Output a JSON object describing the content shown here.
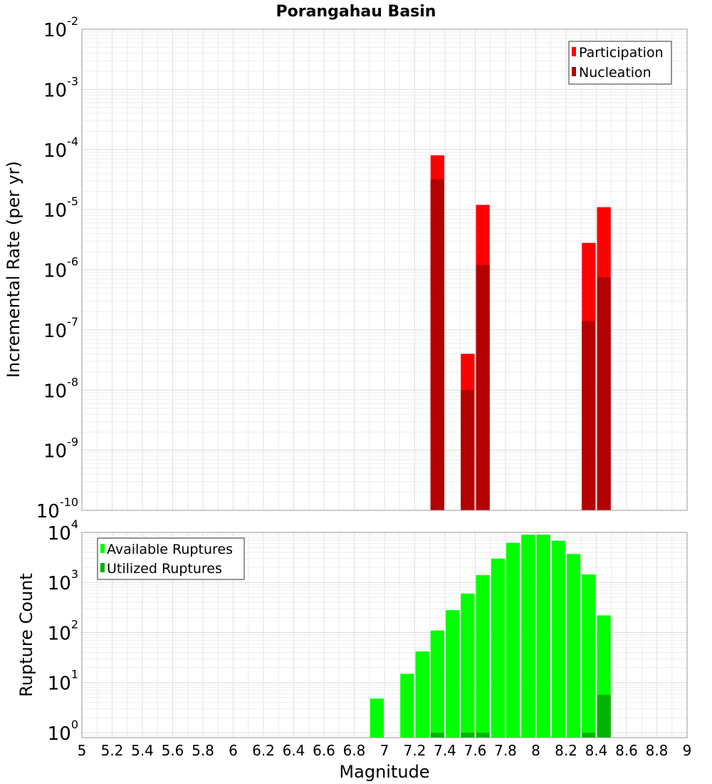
{
  "chart_data": [
    {
      "type": "bar",
      "scale": "log",
      "title": "Porangahau Basin",
      "xlabel": "",
      "ylabel": "Incremental Rate (per yr)",
      "xlim": [
        5,
        9
      ],
      "ylim_exponents": [
        -10,
        -2
      ],
      "y_tick_exponents": [
        "-2",
        "-3",
        "-4",
        "-5",
        "-6",
        "-7",
        "-8",
        "-9",
        "-10"
      ],
      "y_tick_base": "10",
      "legend": "top-right",
      "series": [
        {
          "name": "Participation",
          "color": "#ff0000",
          "points": [
            [
              7.35,
              8e-05
            ],
            [
              7.55,
              4e-08
            ],
            [
              7.65,
              1.2e-05
            ],
            [
              8.35,
              2.8e-06
            ],
            [
              8.45,
              1.1e-05
            ]
          ]
        },
        {
          "name": "Nucleation",
          "color": "#b30000",
          "points": [
            [
              7.35,
              3.2e-05
            ],
            [
              7.55,
              1e-08
            ],
            [
              7.65,
              1.2e-06
            ],
            [
              8.35,
              1.4e-07
            ],
            [
              8.45,
              7.5e-07
            ]
          ]
        }
      ]
    },
    {
      "type": "bar",
      "scale": "log",
      "title": "",
      "xlabel": "Magnitude",
      "ylabel": "Rupture Count",
      "xlim": [
        5,
        9
      ],
      "ylim_exponents": [
        -0.1,
        4
      ],
      "y_tick_exponents": [
        "4",
        "3",
        "2",
        "1",
        "0"
      ],
      "y_tick_base": "10",
      "x_ticks": [
        "5",
        "5.2",
        "5.4",
        "5.6",
        "5.8",
        "6",
        "6.2",
        "6.4",
        "6.6",
        "6.8",
        "7",
        "7.2",
        "7.4",
        "7.6",
        "7.8",
        "8",
        "8.2",
        "8.4",
        "8.6",
        "8.8",
        "9"
      ],
      "legend": "top-left",
      "series": [
        {
          "name": "Available Ruptures",
          "color": "#00ff00",
          "points": [
            [
              6.95,
              4.8
            ],
            [
              7.15,
              15
            ],
            [
              7.25,
              42
            ],
            [
              7.35,
              110
            ],
            [
              7.45,
              280
            ],
            [
              7.55,
              600
            ],
            [
              7.65,
              1400
            ],
            [
              7.75,
              3000
            ],
            [
              7.85,
              6200
            ],
            [
              7.95,
              9000
            ],
            [
              8.05,
              9000
            ],
            [
              8.15,
              6800
            ],
            [
              8.25,
              3700
            ],
            [
              8.35,
              1450
            ],
            [
              8.45,
              220
            ]
          ]
        },
        {
          "name": "Utilized Ruptures",
          "color": "#00b300",
          "points": [
            [
              7.35,
              1
            ],
            [
              7.55,
              1
            ],
            [
              7.65,
              1
            ],
            [
              8.35,
              1
            ],
            [
              8.45,
              5.7
            ]
          ]
        }
      ]
    }
  ]
}
